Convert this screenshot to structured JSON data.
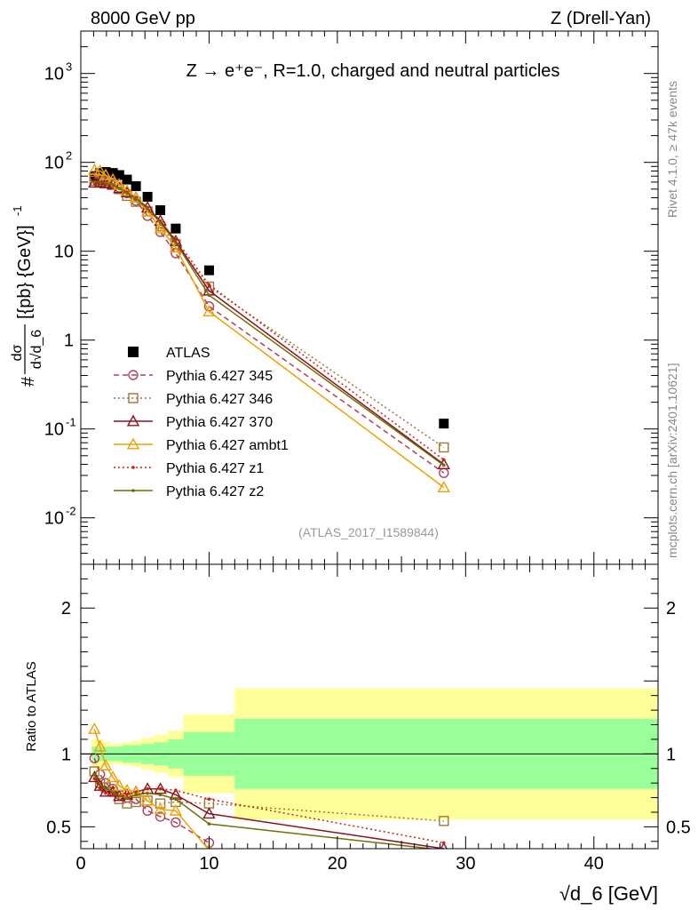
{
  "header": {
    "left": "8000 GeV pp",
    "right": "Z (Drell-Yan)"
  },
  "side_labels": {
    "rivet": "Rivet 4.1.0, ≥ 47k events",
    "mcplots": "mcplots.cern.ch [arXiv:2401.10621]"
  },
  "chart_data": {
    "type": "scatter",
    "title": "Z → e⁺e⁻, R=1.0, charged and neutral particles",
    "analysis_id": "(ATLAS_2017_I1589844)",
    "xlabel": "√d_6 [GeV]",
    "xlim": [
      0,
      45
    ],
    "x_ticks": [
      "0",
      "10",
      "20",
      "30",
      "40"
    ],
    "main_panel": {
      "ylabel": "dσ / d√d_6 [{pb} {GeV}⁻¹]",
      "ylabel_parts": {
        "hash": "#",
        "num": "dσ",
        "den": "d√d_6",
        "units": "[{pb} {GeV}]"
      },
      "yscale": "log",
      "ylim": [
        0.003,
        3000
      ],
      "y_ticks": [
        {
          "value": 0.01,
          "base": "10",
          "exp": "-2"
        },
        {
          "value": 0.1,
          "base": "10",
          "exp": "-1"
        },
        {
          "value": 1,
          "base": "1",
          "exp": ""
        },
        {
          "value": 10,
          "base": "10",
          "exp": ""
        },
        {
          "value": 100,
          "base": "10",
          "exp": "2"
        },
        {
          "value": 1000,
          "base": "10",
          "exp": "3"
        }
      ],
      "x": [
        1.06,
        1.5,
        1.94,
        2.5,
        3.0,
        3.6,
        4.3,
        5.2,
        6.2,
        7.4,
        10.0,
        28.3
      ],
      "series": [
        {
          "name": "ATLAS",
          "color": "#000000",
          "marker": "square-filled",
          "line": "none",
          "values": [
            70,
            76,
            78,
            76,
            72,
            64,
            54,
            41,
            29,
            18,
            6.1,
            0.115
          ]
        },
        {
          "name": "Pythia 6.427 345",
          "color": "#b0405a",
          "marker": "circle-open",
          "line": "dashed",
          "values": [
            68,
            65,
            62,
            58,
            52,
            45,
            37,
            25,
            16.5,
            9.5,
            2.4,
            0.032
          ]
        },
        {
          "name": "Pythia 6.427 346",
          "color": "#a0763a",
          "marker": "square-open",
          "line": "dotted",
          "values": [
            62,
            61,
            60,
            56,
            50,
            42,
            36,
            28,
            19,
            12,
            4.0,
            0.062
          ]
        },
        {
          "name": "Pythia 6.427 370",
          "color": "#8b1020",
          "marker": "triangle-open",
          "line": "solid",
          "values": [
            59,
            59,
            58,
            56,
            51,
            46,
            40,
            31,
            22,
            13,
            3.6,
            0.04
          ]
        },
        {
          "name": "Pythia 6.427 ambt1",
          "color": "#f0a000",
          "marker": "triangle-open",
          "line": "solid",
          "values": [
            82,
            80,
            72,
            64,
            56,
            48,
            40,
            28,
            18,
            11,
            2.1,
            0.022
          ]
        },
        {
          "name": "Pythia 6.427 z1",
          "color": "#d02010",
          "marker": "dot",
          "line": "dotted",
          "values": [
            58,
            58,
            57,
            55,
            51,
            46,
            40,
            31,
            22,
            13.5,
            4.2,
            0.045
          ]
        },
        {
          "name": "Pythia 6.427 z2",
          "color": "#707000",
          "marker": "dot",
          "line": "solid",
          "values": [
            60,
            60,
            59,
            56,
            51,
            45,
            39,
            30,
            21,
            12.5,
            3.2,
            0.039
          ]
        }
      ]
    },
    "ratio_panel": {
      "ylabel": "Ratio to ATLAS",
      "ylim": [
        0.35,
        2.3
      ],
      "y_ticks": [
        "0.5",
        "1",
        "2"
      ],
      "bands": {
        "x_edges": [
          0.85,
          1.28,
          1.72,
          2.2,
          2.75,
          3.25,
          4.0,
          4.7,
          5.7,
          6.8,
          8.0,
          12.0,
          45.0
        ],
        "inner_up": [
          1.05,
          1.05,
          1.05,
          1.05,
          1.05,
          1.06,
          1.06,
          1.07,
          1.08,
          1.1,
          1.15,
          1.24
        ],
        "inner_down": [
          0.95,
          0.95,
          0.95,
          0.95,
          0.95,
          0.94,
          0.94,
          0.93,
          0.92,
          0.9,
          0.85,
          0.76
        ],
        "outer_up": [
          1.1,
          1.1,
          1.08,
          1.07,
          1.07,
          1.08,
          1.09,
          1.11,
          1.13,
          1.16,
          1.27,
          1.45
        ],
        "outer_down": [
          0.9,
          0.9,
          0.92,
          0.93,
          0.93,
          0.92,
          0.91,
          0.89,
          0.87,
          0.84,
          0.73,
          0.55
        ]
      },
      "series": [
        {
          "name": "Pythia 6.427 345",
          "color": "#b0405a",
          "marker": "circle-open",
          "line": "dashed",
          "x": [
            1.06,
            1.5,
            1.94,
            2.5,
            3.0,
            3.6,
            4.3,
            5.2,
            6.2,
            7.4,
            10.0
          ],
          "values": [
            0.97,
            0.86,
            0.8,
            0.76,
            0.72,
            0.7,
            0.69,
            0.61,
            0.57,
            0.53,
            0.39
          ]
        },
        {
          "name": "Pythia 6.427 346",
          "color": "#a0763a",
          "marker": "square-open",
          "line": "dotted",
          "x": [
            1.06,
            1.5,
            1.94,
            2.5,
            3.0,
            3.6,
            4.3,
            5.2,
            6.2,
            7.4,
            10.0,
            28.3
          ],
          "values": [
            0.88,
            0.8,
            0.77,
            0.74,
            0.69,
            0.66,
            0.67,
            0.68,
            0.66,
            0.67,
            0.66,
            0.54
          ]
        },
        {
          "name": "Pythia 6.427 370",
          "color": "#8b1020",
          "marker": "triangle-open",
          "line": "solid",
          "x": [
            1.06,
            1.5,
            1.94,
            2.5,
            3.0,
            3.6,
            4.3,
            5.2,
            6.2,
            7.4,
            10.0,
            28.3
          ],
          "values": [
            0.84,
            0.78,
            0.74,
            0.74,
            0.71,
            0.72,
            0.74,
            0.76,
            0.76,
            0.72,
            0.59,
            0.35
          ]
        },
        {
          "name": "Pythia 6.427 ambt1",
          "color": "#f0a000",
          "marker": "triangle-open",
          "line": "solid",
          "x": [
            1.06,
            1.5,
            1.94,
            2.5,
            3.0,
            3.6,
            4.3,
            5.2,
            6.2,
            7.4,
            10.0
          ],
          "values": [
            1.17,
            1.05,
            0.92,
            0.84,
            0.78,
            0.75,
            0.74,
            0.68,
            0.62,
            0.61,
            0.34
          ]
        },
        {
          "name": "Pythia 6.427 z1",
          "color": "#d02010",
          "marker": "dot",
          "line": "dotted",
          "x": [
            1.06,
            1.5,
            1.94,
            2.5,
            3.0,
            3.6,
            4.3,
            5.2,
            6.2,
            7.4,
            10.0,
            28.3
          ],
          "values": [
            0.83,
            0.76,
            0.73,
            0.72,
            0.71,
            0.72,
            0.74,
            0.76,
            0.76,
            0.75,
            0.69,
            0.39
          ]
        },
        {
          "name": "Pythia 6.427 z2",
          "color": "#707000",
          "marker": "dot",
          "line": "solid",
          "x": [
            1.06,
            1.5,
            1.94,
            2.5,
            3.0,
            3.6,
            4.3,
            5.2,
            6.2,
            7.4,
            10.0,
            28.3
          ],
          "values": [
            0.86,
            0.79,
            0.76,
            0.74,
            0.71,
            0.7,
            0.72,
            0.73,
            0.72,
            0.69,
            0.52,
            0.34
          ]
        }
      ]
    }
  }
}
